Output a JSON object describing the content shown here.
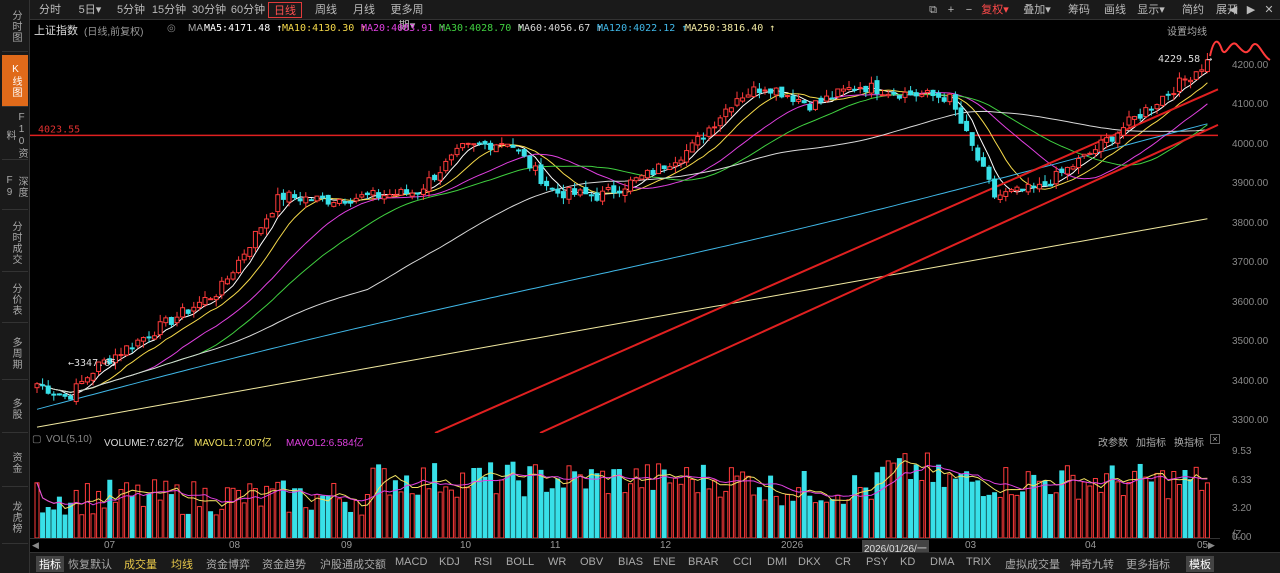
{
  "left_nav": [
    {
      "label": "分时图",
      "active": false
    },
    {
      "label": "K线图",
      "active": true
    },
    {
      "label": "F10资料",
      "active": false
    },
    {
      "label": "深度F9",
      "active": false
    },
    {
      "label": "分时成交",
      "active": false
    },
    {
      "label": "分价表",
      "active": false
    },
    {
      "label": "多周期",
      "active": false
    },
    {
      "label": "多股",
      "active": false
    },
    {
      "label": "资金",
      "active": false
    },
    {
      "label": "龙虎榜",
      "active": false
    }
  ],
  "toolbar": {
    "periods": [
      "分时",
      "5日",
      "5分钟",
      "15分钟",
      "30分钟",
      "60分钟",
      "日线",
      "周线",
      "月线",
      "更多周期"
    ],
    "active_period": "日线",
    "right": [
      "复权",
      "叠加",
      "筹码",
      "画线",
      "显示",
      "简约",
      "展开"
    ],
    "icons": [
      "copy-icon",
      "plus-icon",
      "minus-icon",
      "back-icon",
      "forward-icon",
      "close-icon"
    ]
  },
  "legend": {
    "title": "上证指数",
    "subtitle": "(日线,前复权)",
    "ma_label": "MA",
    "ma": [
      {
        "text": "MA5:4171.48",
        "color": "#ffffff"
      },
      {
        "text": "MA10:4130.30",
        "color": "#f5d94a"
      },
      {
        "text": "MA20:4083.91",
        "color": "#e040e0"
      },
      {
        "text": "MA30:4028.70",
        "color": "#40d040"
      },
      {
        "text": "MA60:4056.67",
        "color": "#d8d8d8"
      },
      {
        "text": "MA120:4022.12",
        "color": "#40b8e8"
      },
      {
        "text": "MA250:3816.40",
        "color": "#f0e8a0"
      }
    ],
    "settings": "设置均线"
  },
  "price_axis": [
    "4200.00",
    "4100.00",
    "4000.00",
    "3900.00",
    "3800.00",
    "3700.00",
    "3600.00",
    "3500.00",
    "3400.00",
    "3300.00"
  ],
  "annotations": {
    "hline_label": "4023.55",
    "high_label": "4229.58",
    "low_label": "3347.65"
  },
  "volume": {
    "ma_label": "VOL(5,10)",
    "volume": "VOLUME:7.627亿",
    "mavol1": "MAVOL1:7.007亿",
    "mavol2": "MAVOL2:6.584亿",
    "actions": [
      "改参数",
      "加指标",
      "换指标"
    ],
    "axis": [
      "9.53",
      "6.33",
      "3.20",
      "0.00"
    ],
    "axis_unit": "亿"
  },
  "date_axis": [
    "07",
    "08",
    "09",
    "10",
    "11",
    "12",
    "2026",
    "03",
    "04",
    "05"
  ],
  "cursor_date": "2026/01/26/一",
  "bottom_tabs": [
    "指标",
    "恢复默认",
    "成交量",
    "均线",
    "资金博弈",
    "资金趋势",
    "沪股通成交额",
    "MACD",
    "KDJ",
    "RSI",
    "BOLL",
    "WR",
    "OBV",
    "BIAS",
    "ENE",
    "BRAR",
    "CCI",
    "DMI",
    "DKX",
    "CR",
    "PSY",
    "KD",
    "DMA",
    "TRIX",
    "虚拟成交量",
    "神奇九转",
    "更多指标",
    "模板"
  ],
  "colors": {
    "up": "#ff3b3b",
    "down": "#38e0e8",
    "accent": "#e06a1a"
  },
  "chart_data": {
    "type": "candlestick",
    "ylim": [
      3270,
      4270
    ],
    "series_note": "daily index candles with MA lines and volume bars"
  }
}
